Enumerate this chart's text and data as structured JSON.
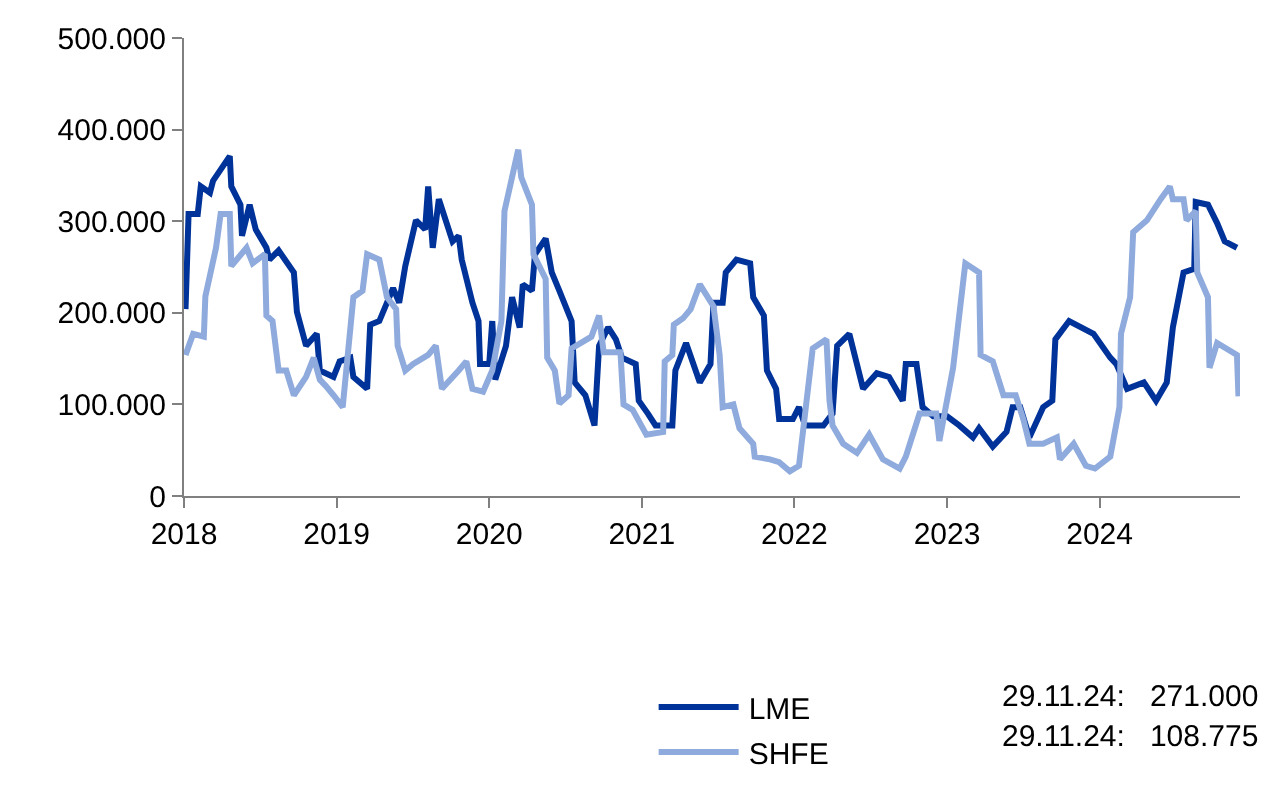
{
  "chart_data": {
    "type": "line",
    "xlim": [
      2018,
      2024.92
    ],
    "xticks": [
      2018,
      2019,
      2020,
      2021,
      2022,
      2023,
      2024
    ],
    "ylim": [
      0,
      500000
    ],
    "yticks": [
      {
        "value": 0,
        "label": "0"
      },
      {
        "value": 100000,
        "label": "100.000"
      },
      {
        "value": 200000,
        "label": "200.000"
      },
      {
        "value": 300000,
        "label": "300.000"
      },
      {
        "value": 400000,
        "label": "400.000"
      },
      {
        "value": 500000,
        "label": "500.000"
      }
    ],
    "legend": "bottom right",
    "marker": "none",
    "line_style": "solid",
    "annotations": [
      "29.11.24:   271.000",
      "29.11.24:   108.775"
    ],
    "series": [
      {
        "name": "LME",
        "color": "#003399",
        "x": [
          2018.01,
          2018.03,
          2018.09,
          2018.11,
          2018.17,
          2018.19,
          2018.3,
          2018.31,
          2018.37,
          2018.38,
          2018.43,
          2018.47,
          2018.54,
          2018.56,
          2018.62,
          2018.72,
          2018.74,
          2018.8,
          2018.87,
          2018.89,
          2018.98,
          2019.02,
          2019.09,
          2019.11,
          2019.2,
          2019.22,
          2019.28,
          2019.37,
          2019.41,
          2019.45,
          2019.52,
          2019.58,
          2019.6,
          2019.63,
          2019.67,
          2019.76,
          2019.8,
          2019.82,
          2019.89,
          2019.93,
          2019.94,
          2020.0,
          2020.02,
          2020.04,
          2020.11,
          2020.15,
          2020.2,
          2020.22,
          2020.28,
          2020.3,
          2020.37,
          2020.41,
          2020.46,
          2020.54,
          2020.56,
          2020.63,
          2020.69,
          2020.72,
          2020.78,
          2020.83,
          2020.87,
          2020.96,
          2020.98,
          2021.04,
          2021.09,
          2021.2,
          2021.22,
          2021.29,
          2021.38,
          2021.45,
          2021.47,
          2021.53,
          2021.55,
          2021.62,
          2021.71,
          2021.73,
          2021.8,
          2021.82,
          2021.88,
          2021.9,
          2021.99,
          2022.03,
          2022.07,
          2022.19,
          2022.25,
          2022.28,
          2022.36,
          2022.45,
          2022.54,
          2022.62,
          2022.71,
          2022.73,
          2022.8,
          2022.84,
          2022.91,
          2023.0,
          2023.08,
          2023.17,
          2023.21,
          2023.3,
          2023.39,
          2023.43,
          2023.48,
          2023.54,
          2023.63,
          2023.69,
          2023.71,
          2023.8,
          2023.96,
          2024.07,
          2024.11,
          2024.18,
          2024.29,
          2024.37,
          2024.44,
          2024.48,
          2024.55,
          2024.62,
          2024.63,
          2024.71,
          2024.77,
          2024.82,
          2024.9
        ],
        "values": [
          204000,
          308000,
          308000,
          338000,
          331000,
          344000,
          371000,
          338000,
          318000,
          284000,
          318000,
          291000,
          271000,
          258000,
          268000,
          244000,
          201000,
          164000,
          177000,
          137000,
          130000,
          147000,
          151000,
          130000,
          117000,
          187000,
          191000,
          227000,
          211000,
          251000,
          301000,
          291000,
          338000,
          271000,
          324000,
          278000,
          284000,
          258000,
          211000,
          191000,
          144000,
          144000,
          191000,
          127000,
          164000,
          217000,
          184000,
          231000,
          224000,
          264000,
          281000,
          244000,
          224000,
          191000,
          124000,
          110000,
          77000,
          164000,
          184000,
          171000,
          151000,
          144000,
          104000,
          90000,
          77000,
          77000,
          137000,
          167000,
          124000,
          144000,
          211000,
          211000,
          244000,
          258000,
          254000,
          217000,
          197000,
          137000,
          117000,
          84000,
          84000,
          97000,
          77000,
          77000,
          90000,
          164000,
          177000,
          117000,
          134000,
          130000,
          104000,
          144000,
          144000,
          97000,
          87000,
          87000,
          77000,
          64000,
          74000,
          54000,
          70000,
          97000,
          97000,
          64000,
          97000,
          104000,
          171000,
          191000,
          177000,
          151000,
          144000,
          117000,
          124000,
          104000,
          124000,
          184000,
          244000,
          248000,
          321000,
          318000,
          298000,
          278000,
          271000
        ]
      },
      {
        "name": "SHFE",
        "color": "#8faadc",
        "x": [
          2018.01,
          2018.06,
          2018.13,
          2018.14,
          2018.21,
          2018.24,
          2018.3,
          2018.31,
          2018.41,
          2018.45,
          2018.53,
          2018.54,
          2018.58,
          2018.62,
          2018.67,
          2018.72,
          2018.8,
          2018.85,
          2018.89,
          2018.93,
          2018.98,
          2019.04,
          2019.11,
          2019.17,
          2019.2,
          2019.28,
          2019.33,
          2019.39,
          2019.4,
          2019.45,
          2019.5,
          2019.6,
          2019.65,
          2019.69,
          2019.8,
          2019.85,
          2019.89,
          2019.96,
          2020.02,
          2020.08,
          2020.1,
          2020.19,
          2020.21,
          2020.28,
          2020.29,
          2020.37,
          2020.38,
          2020.43,
          2020.46,
          2020.52,
          2020.54,
          2020.67,
          2020.72,
          2020.75,
          2020.86,
          2020.88,
          2020.94,
          2021.03,
          2021.14,
          2021.15,
          2021.2,
          2021.21,
          2021.27,
          2021.32,
          2021.38,
          2021.47,
          2021.51,
          2021.53,
          2021.6,
          2021.64,
          2021.73,
          2021.74,
          2021.84,
          2021.9,
          2021.97,
          2022.03,
          2022.12,
          2022.21,
          2022.23,
          2022.25,
          2022.32,
          2022.41,
          2022.49,
          2022.58,
          2022.69,
          2022.73,
          2022.82,
          2022.93,
          2022.95,
          2023.04,
          2023.12,
          2023.21,
          2023.22,
          2023.3,
          2023.37,
          2023.45,
          2023.5,
          2023.54,
          2023.63,
          2023.72,
          2023.74,
          2023.83,
          2023.91,
          2023.97,
          2024.07,
          2024.13,
          2024.14,
          2024.2,
          2024.22,
          2024.31,
          2024.4,
          2024.46,
          2024.48,
          2024.55,
          2024.57,
          2024.63,
          2024.64,
          2024.71,
          2024.72,
          2024.77,
          2024.9,
          2024.91
        ],
        "values": [
          154000,
          177000,
          174000,
          218000,
          271000,
          308000,
          308000,
          251000,
          271000,
          254000,
          264000,
          197000,
          191000,
          137000,
          137000,
          110000,
          130000,
          151000,
          127000,
          120000,
          110000,
          97000,
          217000,
          224000,
          264000,
          258000,
          217000,
          204000,
          164000,
          137000,
          144000,
          154000,
          164000,
          117000,
          137000,
          147000,
          117000,
          114000,
          137000,
          191000,
          311000,
          378000,
          348000,
          318000,
          264000,
          237000,
          151000,
          137000,
          101000,
          110000,
          161000,
          174000,
          197000,
          157000,
          157000,
          100000,
          94000,
          67000,
          70000,
          147000,
          154000,
          187000,
          194000,
          204000,
          231000,
          207000,
          154000,
          97000,
          100000,
          74000,
          57000,
          43000,
          40000,
          37000,
          27000,
          33000,
          161000,
          171000,
          104000,
          77000,
          57000,
          47000,
          67000,
          40000,
          30000,
          43000,
          90000,
          90000,
          60000,
          140000,
          254000,
          244000,
          154000,
          147000,
          110000,
          110000,
          84000,
          57000,
          57000,
          64000,
          40000,
          57000,
          33000,
          30000,
          43000,
          97000,
          177000,
          217000,
          288000,
          301000,
          324000,
          338000,
          324000,
          324000,
          301000,
          311000,
          244000,
          217000,
          140000,
          167000,
          154000,
          108775
        ]
      }
    ]
  }
}
